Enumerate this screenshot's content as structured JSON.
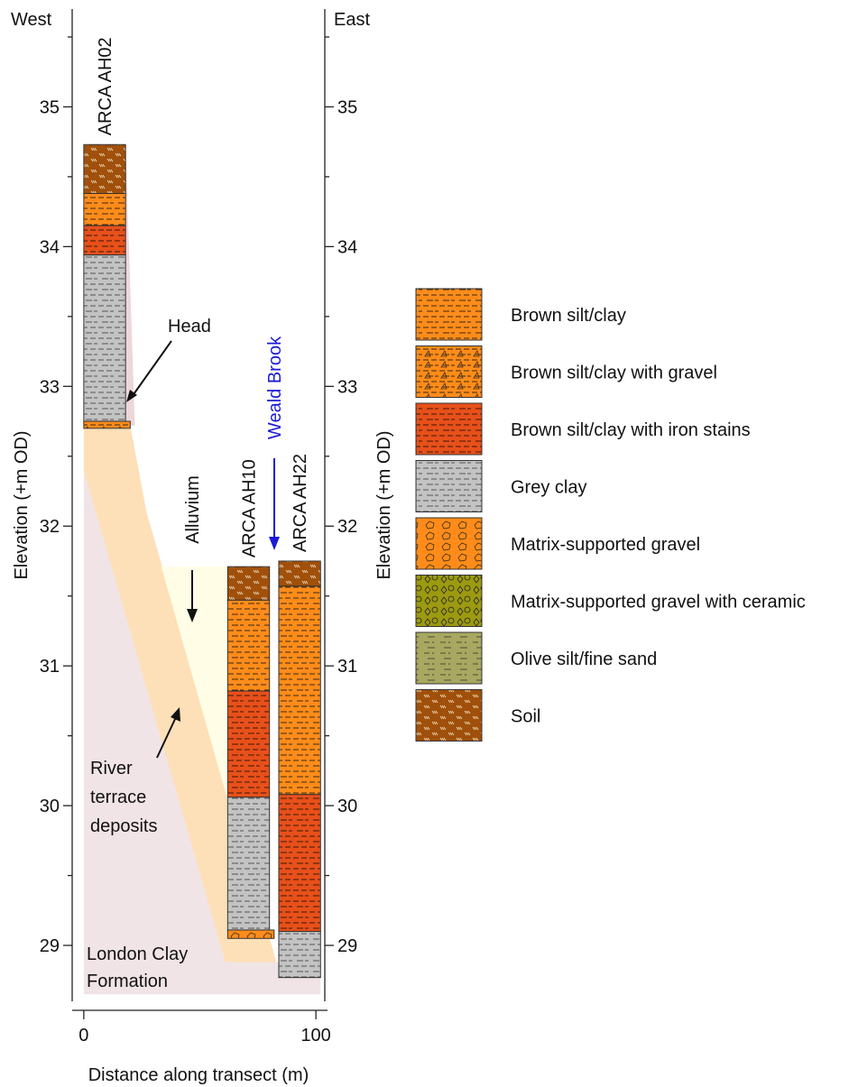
{
  "chart_data": {
    "type": "borehole-section",
    "y_label": "Elevation (+m OD)",
    "x_label": "Distance along transect (m)",
    "west_label": "West",
    "east_label": "East",
    "stream_label": "Weald Brook",
    "ylim": [
      28.6,
      35.7
    ],
    "yticks": [
      29,
      30,
      31,
      32,
      33,
      34,
      35
    ],
    "yminor_ticks": [
      29.5,
      30.5,
      31.5,
      32.5,
      33.5,
      34.5,
      35.5
    ],
    "xlim": [
      -5,
      105
    ],
    "xticks": [
      0,
      100
    ],
    "lithologies": [
      {
        "name": "Brown silt/clay",
        "color": "#ff8c1a"
      },
      {
        "name": "Brown silt/clay with gravel",
        "color": "#ff8c1a"
      },
      {
        "name": "Brown silt/clay with iron stains",
        "color": "#e8501a"
      },
      {
        "name": "Grey clay",
        "color": "#c3c3c3"
      },
      {
        "name": "Matrix-supported gravel",
        "color": "#ff8c1a"
      },
      {
        "name": "Matrix-supported gravel with ceramic",
        "color": "#9c9a10"
      },
      {
        "name": "Olive silt/fine sand",
        "color": "#a9a860"
      },
      {
        "name": "Soil",
        "color": "#a0500a"
      }
    ],
    "areas": [
      {
        "label_lines": [
          "London Clay",
          "Formation"
        ],
        "color": "#f1e4e6",
        "x": [
          0,
          20,
          27,
          83,
          102,
          102,
          0
        ],
        "y": [
          32.72,
          32.72,
          32.1,
          28.88,
          28.88,
          28.65,
          28.65
        ]
      },
      {
        "label_lines": [
          "River",
          "terrace",
          "deposits"
        ],
        "color": "#fde0b8",
        "x": [
          0,
          20,
          27,
          83,
          61,
          0
        ],
        "y": [
          32.72,
          32.72,
          32.1,
          28.88,
          28.88,
          32.4
        ]
      },
      {
        "label_lines": [
          "Alluvium"
        ],
        "color": "#fffde6",
        "x": [
          33.4,
          62,
          62
        ],
        "y": [
          31.71,
          31.71,
          30.04
        ]
      },
      {
        "label_lines": [
          "Head"
        ],
        "color": "#ecd7da",
        "x": [
          18,
          22,
          18
        ],
        "y": [
          34.72,
          32.72,
          32.72
        ]
      }
    ],
    "boreholes": [
      {
        "name": "ARCA AH02",
        "x": [
          0,
          18
        ],
        "layers": [
          {
            "lithology": 7,
            "top": 34.73,
            "bottom": 34.38
          },
          {
            "lithology": 0,
            "top": 34.38,
            "bottom": 34.15
          },
          {
            "lithology": 2,
            "top": 34.15,
            "bottom": 33.94
          },
          {
            "lithology": 3,
            "top": 33.94,
            "bottom": 32.75
          },
          {
            "lithology": 1,
            "top": 32.75,
            "bottom": 32.7,
            "x": [
              0,
              20
            ]
          }
        ]
      },
      {
        "name": "ARCA AH10",
        "x": [
          62,
          80
        ],
        "layers": [
          {
            "lithology": 7,
            "top": 31.71,
            "bottom": 31.47
          },
          {
            "lithology": 0,
            "top": 31.47,
            "bottom": 30.82
          },
          {
            "lithology": 2,
            "top": 30.82,
            "bottom": 30.06
          },
          {
            "lithology": 3,
            "top": 30.06,
            "bottom": 29.11
          },
          {
            "lithology": 4,
            "top": 29.11,
            "bottom": 29.05,
            "x": [
              62,
              82
            ]
          }
        ]
      },
      {
        "name": "ARCA AH22",
        "x": [
          84,
          102
        ],
        "layers": [
          {
            "lithology": 7,
            "top": 31.75,
            "bottom": 31.57
          },
          {
            "lithology": 0,
            "top": 31.57,
            "bottom": 30.08
          },
          {
            "lithology": 2,
            "top": 30.08,
            "bottom": 29.1
          },
          {
            "lithology": 3,
            "top": 29.1,
            "bottom": 28.77
          }
        ]
      }
    ]
  }
}
